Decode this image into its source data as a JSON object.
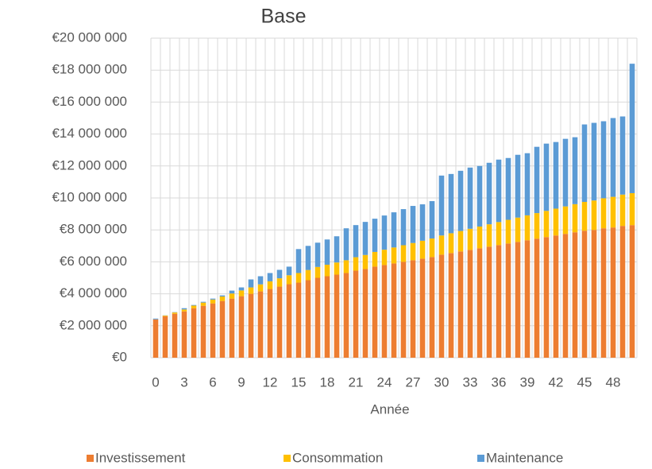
{
  "chart_data": {
    "type": "stacked-bar",
    "title": "Base",
    "x_label": "Année",
    "categories": [
      0,
      null,
      null,
      3,
      null,
      null,
      6,
      null,
      null,
      9,
      null,
      null,
      12,
      null,
      null,
      15,
      null,
      null,
      18,
      null,
      null,
      21,
      null,
      null,
      24,
      null,
      null,
      27,
      null,
      null,
      30,
      null,
      null,
      33,
      null,
      null,
      36,
      null,
      null,
      39,
      null,
      null,
      42,
      null,
      null,
      45,
      null,
      null,
      48,
      null,
      null
    ],
    "series": [
      {
        "name": "Investissement",
        "color": "#ed7d31",
        "values": [
          2400000,
          2600000,
          2750000,
          2900000,
          3100000,
          3250000,
          3400000,
          3550000,
          3700000,
          3850000,
          4000000,
          4150000,
          4300000,
          4450000,
          4600000,
          4700000,
          4850000,
          5000000,
          5100000,
          5200000,
          5300000,
          5450000,
          5550000,
          5700000,
          5800000,
          5900000,
          6000000,
          6100000,
          6200000,
          6300000,
          6450000,
          6550000,
          6650000,
          6750000,
          6850000,
          6950000,
          7050000,
          7150000,
          7250000,
          7350000,
          7450000,
          7550000,
          7650000,
          7750000,
          7850000,
          7950000,
          8000000,
          8100000,
          8150000,
          8250000,
          8300000
        ]
      },
      {
        "name": "Consommation",
        "color": "#ffc000",
        "values": [
          0,
          40000,
          80000,
          120000,
          160000,
          200000,
          240000,
          280000,
          320000,
          360000,
          400000,
          440000,
          480000,
          520000,
          560000,
          600000,
          640000,
          680000,
          720000,
          760000,
          800000,
          840000,
          880000,
          920000,
          960000,
          1000000,
          1040000,
          1080000,
          1120000,
          1160000,
          1200000,
          1240000,
          1280000,
          1320000,
          1360000,
          1400000,
          1440000,
          1480000,
          1520000,
          1560000,
          1600000,
          1640000,
          1680000,
          1720000,
          1760000,
          1800000,
          1840000,
          1880000,
          1920000,
          1960000,
          2000000
        ]
      },
      {
        "name": "Maintenance",
        "color": "#5b9bd5",
        "values": [
          50000,
          10000,
          20000,
          80000,
          40000,
          50000,
          60000,
          70000,
          180000,
          190000,
          500000,
          510000,
          520000,
          530000,
          540000,
          1500000,
          1510000,
          1520000,
          1580000,
          1640000,
          2000000,
          2010000,
          2070000,
          2080000,
          2140000,
          2200000,
          2260000,
          2320000,
          2280000,
          2340000,
          3750000,
          3710000,
          3770000,
          3830000,
          3790000,
          3850000,
          3910000,
          3870000,
          3930000,
          3890000,
          4150000,
          4210000,
          4170000,
          4230000,
          4190000,
          4850000,
          4860000,
          4820000,
          4930000,
          4890000,
          8100000
        ]
      }
    ],
    "ylim": [
      0,
      20000000
    ],
    "yticks": [
      {
        "value": 0,
        "label": "€0"
      },
      {
        "value": 2000000,
        "label": "€2 000 000"
      },
      {
        "value": 4000000,
        "label": "€4 000 000"
      },
      {
        "value": 6000000,
        "label": "€6 000 000"
      },
      {
        "value": 8000000,
        "label": "€8 000 000"
      },
      {
        "value": 10000000,
        "label": "€10 000 000"
      },
      {
        "value": 12000000,
        "label": "€12 000 000"
      },
      {
        "value": 14000000,
        "label": "€14 000 000"
      },
      {
        "value": 16000000,
        "label": "€16 000 000"
      },
      {
        "value": 18000000,
        "label": "€18 000 000"
      },
      {
        "value": 20000000,
        "label": "€20 000 000"
      }
    ],
    "grid": true,
    "legend": "bottom"
  }
}
